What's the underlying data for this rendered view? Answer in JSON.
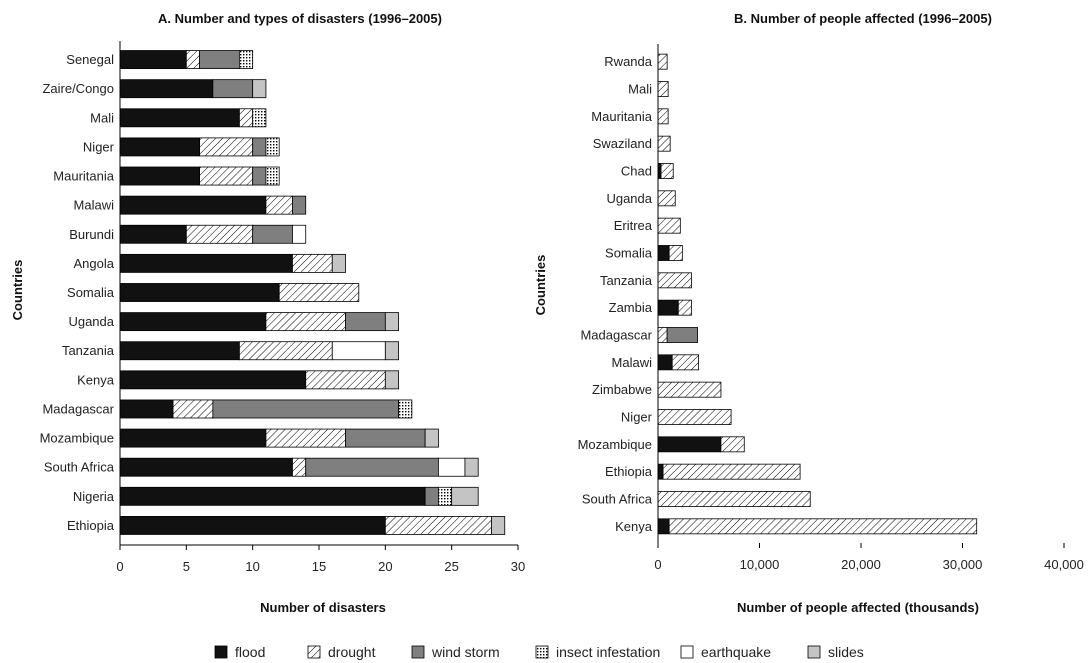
{
  "legend": [
    {
      "key": "flood",
      "label": "flood"
    },
    {
      "key": "drought",
      "label": "drought"
    },
    {
      "key": "wind_storm",
      "label": "wind storm"
    },
    {
      "key": "insect_infestation",
      "label": "insect infestation"
    },
    {
      "key": "earthquake",
      "label": "earthquake"
    },
    {
      "key": "slides",
      "label": "slides"
    }
  ],
  "styles": {
    "flood": {
      "fill": "#111111",
      "pattern": "solid"
    },
    "drought": {
      "fill": "#ffffff",
      "pattern": "hatch"
    },
    "wind_storm": {
      "fill": "#7f7f7f",
      "pattern": "solid"
    },
    "insect_infestation": {
      "fill": "#ffffff",
      "pattern": "grid"
    },
    "earthquake": {
      "fill": "#ffffff",
      "pattern": "solid"
    },
    "slides": {
      "fill": "#c4c4c4",
      "pattern": "solid"
    }
  },
  "chart_data": [
    {
      "type": "bar",
      "orientation": "horizontal",
      "stacked": true,
      "title": "A. Number and types of disasters (1996–2005)",
      "xlabel": "Number of disasters",
      "ylabel": "Countries",
      "xlim": [
        0,
        30
      ],
      "xticks": [
        0,
        5,
        10,
        15,
        20,
        25,
        30
      ],
      "xtick_labels": [
        "0",
        "5",
        "10",
        "15",
        "20",
        "25",
        "30"
      ],
      "categories": [
        "Senegal",
        "Zaire/Congo",
        "Mali",
        "Niger",
        "Mauritania",
        "Malawi",
        "Burundi",
        "Angola",
        "Somalia",
        "Uganda",
        "Tanzania",
        "Kenya",
        "Madagascar",
        "Mozambique",
        "South Africa",
        "Nigeria",
        "Ethiopia"
      ],
      "series": [
        {
          "name": "flood",
          "key": "flood",
          "values": [
            5,
            7,
            9,
            6,
            6,
            11,
            5,
            13,
            12,
            11,
            9,
            14,
            4,
            11,
            13,
            23,
            20
          ]
        },
        {
          "name": "drought",
          "key": "drought",
          "values": [
            1,
            0,
            1,
            4,
            4,
            2,
            5,
            3,
            6,
            6,
            7,
            6,
            3,
            6,
            1,
            0,
            8
          ]
        },
        {
          "name": "wind storm",
          "key": "wind_storm",
          "values": [
            3,
            3,
            0,
            1,
            1,
            1,
            3,
            0,
            0,
            3,
            0,
            0,
            14,
            6,
            10,
            1,
            0
          ]
        },
        {
          "name": "insect infestation",
          "key": "insect_infestation",
          "values": [
            1,
            0,
            1,
            1,
            1,
            0,
            0,
            0,
            0,
            0,
            0,
            0,
            1,
            0,
            0,
            1,
            0
          ]
        },
        {
          "name": "earthquake",
          "key": "earthquake",
          "values": [
            0,
            0,
            0,
            0,
            0,
            0,
            1,
            0,
            0,
            0,
            4,
            0,
            0,
            0,
            2,
            0,
            0
          ]
        },
        {
          "name": "slides",
          "key": "slides",
          "values": [
            0,
            1,
            0,
            0,
            0,
            0,
            0,
            1,
            0,
            1,
            1,
            1,
            0,
            1,
            1,
            2,
            1
          ]
        }
      ]
    },
    {
      "type": "bar",
      "orientation": "horizontal",
      "stacked": true,
      "title": "B. Number of people affected (1996–2005)",
      "xlabel": "Number of people affected (thousands)",
      "ylabel": "Countries",
      "xlim": [
        0,
        40000
      ],
      "xticks": [
        0,
        10000,
        20000,
        30000,
        40000
      ],
      "xtick_labels": [
        "0",
        "10,000",
        "20,000",
        "30,000",
        "40,000"
      ],
      "categories": [
        "Rwanda",
        "Mali",
        "Mauritania",
        "Swaziland",
        "Chad",
        "Uganda",
        "Eritrea",
        "Somalia",
        "Tanzania",
        "Zambia",
        "Madagascar",
        "Malawi",
        "Zimbabwe",
        "Niger",
        "Mozambique",
        "Ethiopia",
        "South Africa",
        "Kenya"
      ],
      "series": [
        {
          "name": "flood",
          "key": "flood",
          "values": [
            0,
            0,
            0,
            0,
            300,
            0,
            0,
            1100,
            0,
            2000,
            0,
            1400,
            0,
            0,
            6200,
            500,
            0,
            1100
          ]
        },
        {
          "name": "drought",
          "key": "drought",
          "values": [
            900,
            1000,
            1000,
            1200,
            1200,
            1700,
            2200,
            1300,
            3300,
            1300,
            900,
            2600,
            6200,
            7200,
            2300,
            13500,
            15000,
            30300
          ]
        },
        {
          "name": "wind storm",
          "key": "wind_storm",
          "values": [
            0,
            0,
            0,
            0,
            0,
            0,
            0,
            0,
            0,
            0,
            3000,
            0,
            0,
            0,
            0,
            0,
            0,
            0
          ]
        }
      ]
    }
  ]
}
